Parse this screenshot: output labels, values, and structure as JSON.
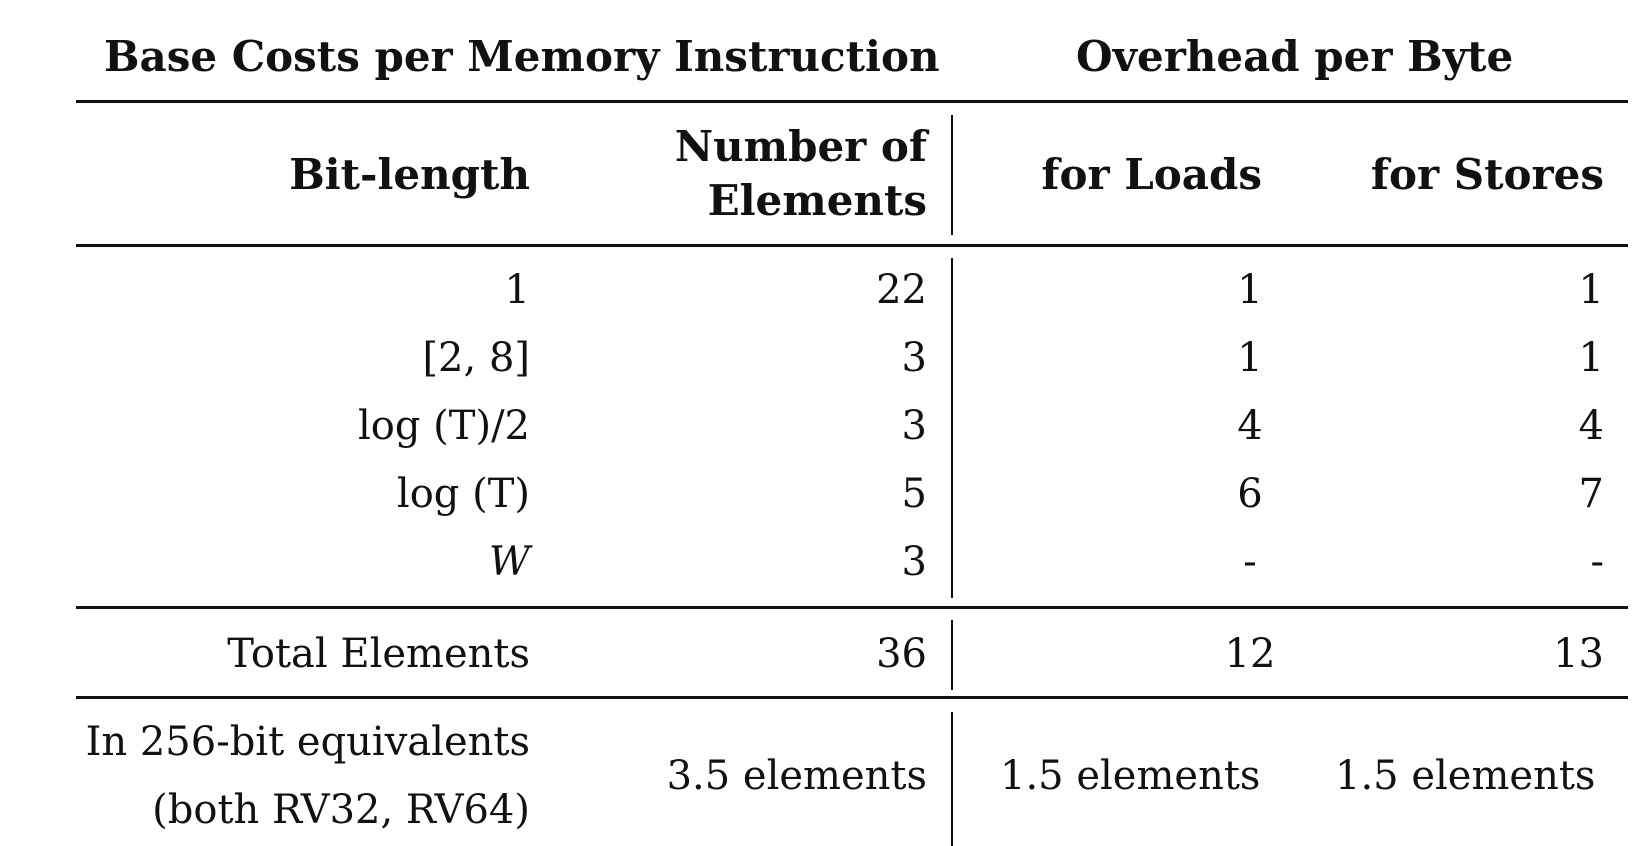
{
  "table": {
    "group_headers": {
      "left": "Base Costs per Memory Instruction",
      "right": "Overhead per Byte"
    },
    "column_headers": {
      "bit_length": "Bit-length",
      "num_elements_line1": "Number of",
      "num_elements_line2": "Elements",
      "loads": "for Loads",
      "stores": "for Stores"
    },
    "rows": [
      {
        "bit_length": "1",
        "elements": "22",
        "loads": "1",
        "stores": "1"
      },
      {
        "bit_length": "[2, 8]",
        "elements": "3",
        "loads": "1",
        "stores": "1"
      },
      {
        "bit_length": "log (T)/2",
        "elements": "3",
        "loads": "4",
        "stores": "4"
      },
      {
        "bit_length": "log (T)",
        "elements": "5",
        "loads": "6",
        "stores": "7"
      },
      {
        "bit_length": "W",
        "elements": "3",
        "loads": "-",
        "stores": "-"
      }
    ],
    "total": {
      "label": "Total Elements",
      "elements": "36",
      "loads": "12",
      "stores": "13"
    },
    "equivalents": {
      "label_line1": "In 256-bit equivalents",
      "label_line2": "(both RV32, RV64)",
      "elements": "3.5 elements",
      "loads": "1.5 elements",
      "stores": "1.5 elements"
    }
  }
}
